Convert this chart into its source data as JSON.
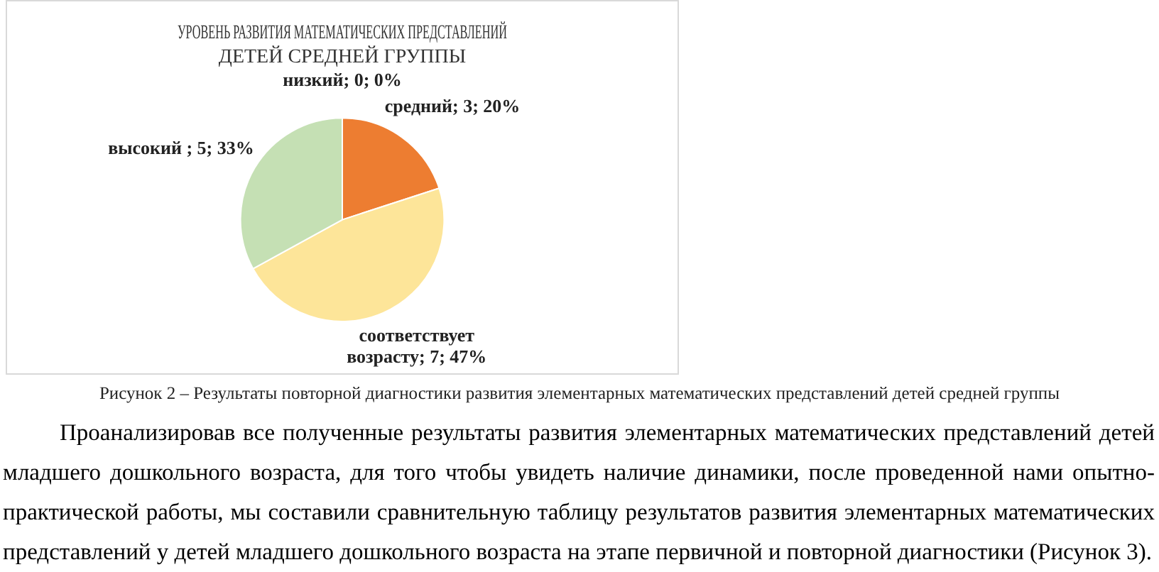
{
  "chart_data": {
    "type": "pie",
    "title": [
      "УРОВЕНЬ РАЗВИТИЯ МАТЕМАТИЧЕСКИХ ПРЕДСТАВЛЕНИЙ",
      "ДЕТЕЙ СРЕДНЕЙ ГРУППЫ"
    ],
    "categories": [
      "низкий",
      "средний",
      "соответствует возрасту",
      "высокий"
    ],
    "values": [
      0,
      20,
      47,
      33
    ],
    "colors": [
      "#5b9bd5",
      "#ed7d31",
      "#fde599",
      "#c5e0b4"
    ],
    "value_labels": [
      "; 0; 0%",
      "; 3; 20%",
      "; 7; 47%",
      " ; 5; 33%"
    ],
    "legend": false,
    "annotations": [
      "Рисунок 2 – Результаты повторной диагностики развития элементарных математических представлений детей средней группы",
      "Проанализировав все полученные результаты развития элементарных математических представлений детей младшего дошкольного возраста, для того чтобы увидеть наличие динамики, после проведенной нами опытно-практической работы, мы составили сравнительную таблицу результатов развития элементарных математических представлений у детей младшего дошкольного возраста на этапе первичной и повторной диагностики (Рисунок 3)."
    ]
  }
}
